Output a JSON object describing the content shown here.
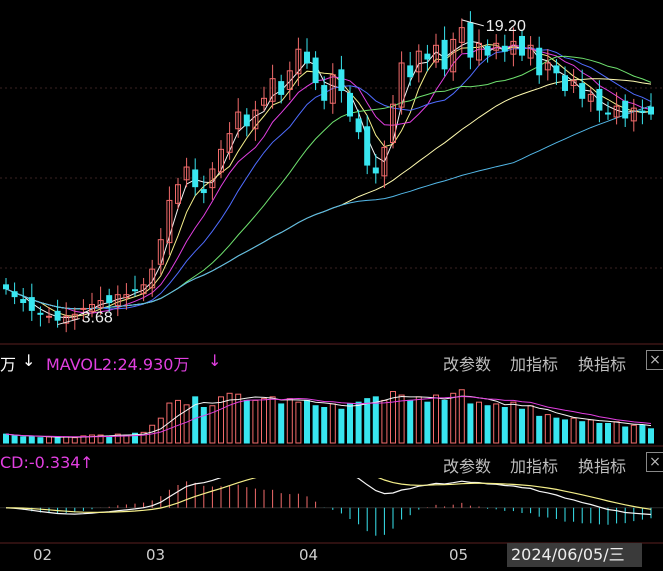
{
  "colors": {
    "up": "#f26b6b",
    "down": "#39e6f0",
    "ma_white": "#f4f4f4",
    "ma_yellow": "#f5ef8a",
    "ma_magenta": "#e13fe0",
    "ma_blue": "#4f6cff",
    "ma_green": "#6ee06e",
    "ma_lightyellow": "#fffbb0",
    "ma_cyan": "#53b8e8",
    "macd_dif": "#f6f6f6",
    "macd_dea": "#f5ef8a",
    "accent_magenta": "#e13fe0"
  },
  "price_panel": {
    "annotations": [
      {
        "label": "19.20",
        "kind": "high"
      },
      {
        "label": "3.68",
        "kind": "low"
      }
    ]
  },
  "volume_panel": {
    "prefix_text": "万",
    "prefix_arrow": "↓",
    "mavol2_label": "MAVOL2:24.930万",
    "mavol2_arrow": "↓",
    "btn_params": "改参数",
    "btn_add": "加指标",
    "btn_switch": "换指标",
    "close": "×"
  },
  "macd_panel": {
    "label": "CD:-0.334",
    "arrow": "↑",
    "btn_params": "改参数",
    "btn_add": "加指标",
    "btn_switch": "换指标",
    "close": "×"
  },
  "x_axis": {
    "months": [
      "02",
      "03",
      "04",
      "05"
    ],
    "cursor_date": "2024/06/05/三"
  },
  "chart_data": {
    "type": "candlestick",
    "price_range": [
      3.2,
      19.6
    ],
    "high_label": 19.2,
    "low_label": 3.68,
    "closes": [
      5.3,
      4.9,
      4.6,
      4.2,
      4.0,
      3.9,
      3.7,
      3.9,
      4.0,
      4.3,
      4.5,
      4.7,
      4.6,
      5.0,
      5.0,
      5.2,
      5.5,
      6.3,
      7.8,
      9.8,
      10.6,
      11.5,
      10.5,
      10.2,
      11.4,
      12.4,
      13.2,
      14.3,
      13.6,
      14.4,
      15.0,
      16.0,
      15.2,
      16.4,
      17.5,
      16.8,
      15.8,
      14.9,
      16.2,
      15.4,
      14.1,
      13.3,
      11.6,
      11.2,
      12.5,
      14.7,
      16.8,
      16.1,
      17.4,
      17.0,
      17.7,
      16.5,
      18.0,
      18.6,
      17.1,
      17.8,
      17.2,
      17.8,
      17.4,
      17.9,
      17.2,
      17.7,
      16.2,
      16.8,
      16.3,
      15.4,
      15.9,
      15.0,
      15.2,
      14.4,
      14.2,
      14.6,
      14.0,
      14.5,
      14.3,
      14.2
    ],
    "volume_range": [
      0,
      80
    ],
    "volumes": [
      10,
      8,
      7,
      7,
      6,
      7,
      6,
      7,
      6,
      8,
      9,
      9,
      8,
      10,
      9,
      11,
      12,
      20,
      28,
      45,
      48,
      43,
      52,
      40,
      42,
      52,
      56,
      55,
      48,
      48,
      50,
      52,
      44,
      50,
      46,
      48,
      42,
      40,
      44,
      38,
      44,
      46,
      50,
      52,
      48,
      58,
      54,
      48,
      52,
      46,
      54,
      48,
      56,
      60,
      44,
      46,
      42,
      44,
      40,
      46,
      38,
      42,
      30,
      32,
      28,
      26,
      28,
      24,
      26,
      22,
      22,
      24,
      18,
      20,
      20,
      16
    ],
    "macd_range": [
      -0.8,
      1.0
    ]
  }
}
